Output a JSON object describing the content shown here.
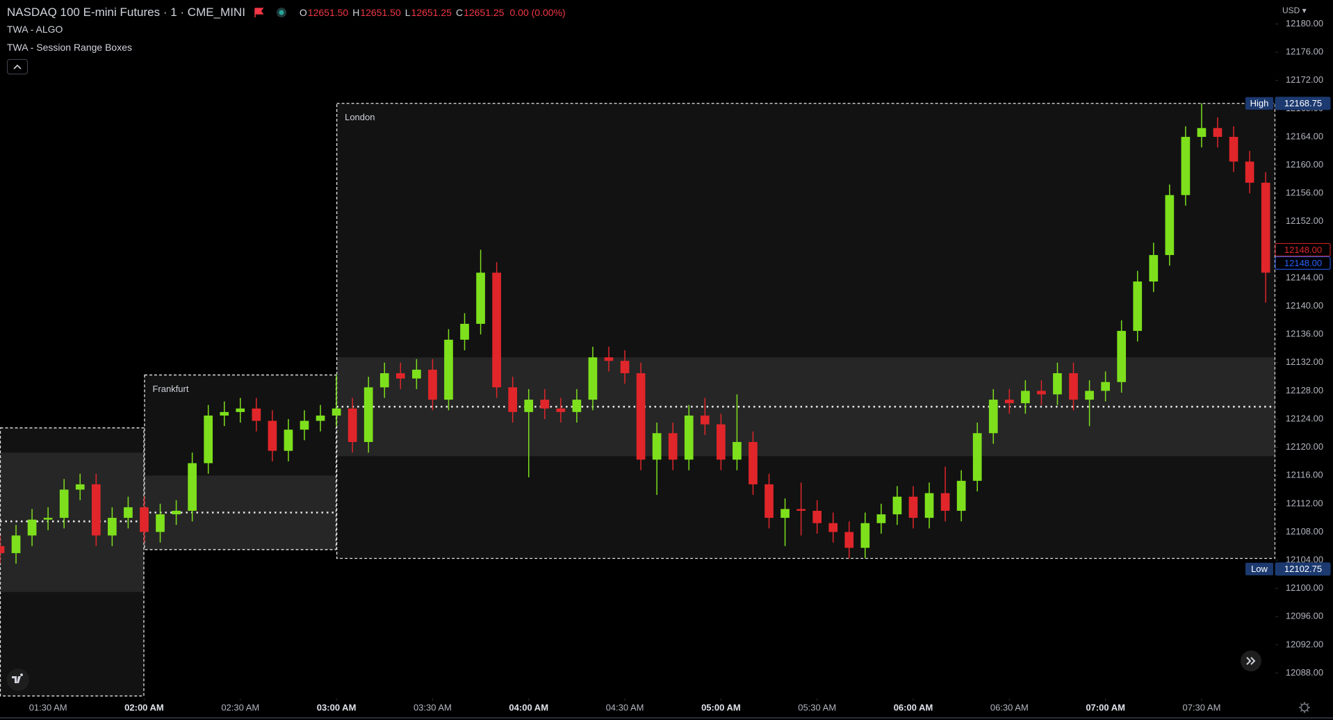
{
  "chart_data": {
    "type": "candlestick",
    "title": "NASDAQ 100 E-mini Futures · 1 · CME_MINI",
    "legend_ohlc": [
      {
        "label": "O",
        "value": "12651.50"
      },
      {
        "label": "H",
        "value": "12651.50"
      },
      {
        "label": "L",
        "value": "12651.25"
      },
      {
        "label": "C",
        "value": "12651.25"
      }
    ],
    "change": "0.00 (0.00%)",
    "indicators": [
      "TWA - ALGO",
      "TWA - Session Range Boxes"
    ],
    "currency": "USD",
    "up_color": "#7ee01d",
    "down_color": "#e0262a",
    "x": [
      "01:15",
      "01:20",
      "01:25",
      "01:30",
      "01:35",
      "01:40",
      "01:45",
      "01:50",
      "01:55",
      "02:00",
      "02:05",
      "02:10",
      "02:15",
      "02:20",
      "02:25",
      "02:30",
      "02:35",
      "02:40",
      "02:45",
      "02:50",
      "02:55",
      "03:00",
      "03:05",
      "03:10",
      "03:15",
      "03:20",
      "03:25",
      "03:30",
      "03:35",
      "03:40",
      "03:45",
      "03:50",
      "03:55",
      "04:00",
      "04:05",
      "04:10",
      "04:15",
      "04:20",
      "04:25",
      "04:30",
      "04:35",
      "04:40",
      "04:45",
      "04:50",
      "04:55",
      "05:00",
      "05:05",
      "05:10",
      "05:15",
      "05:20",
      "05:25",
      "05:30",
      "05:35",
      "05:40",
      "05:45",
      "05:50",
      "05:55",
      "06:00",
      "06:05",
      "06:10",
      "06:15",
      "06:20",
      "06:25",
      "06:30",
      "06:35",
      "06:40",
      "06:45",
      "06:50",
      "06:55",
      "07:00",
      "07:05",
      "07:10",
      "07:15",
      "07:20",
      "07:25",
      "07:30",
      "07:35",
      "07:40",
      "07:45",
      "07:50"
    ],
    "open": [
      12106.0,
      12105.0,
      12107.5,
      12109.75,
      12110.0,
      12114.0,
      12114.75,
      12107.5,
      12110.0,
      12111.5,
      12108.0,
      12110.5,
      12111.0,
      12117.75,
      12124.5,
      12125.0,
      12125.5,
      12123.75,
      12119.5,
      12122.5,
      12123.75,
      12124.5,
      12125.5,
      12120.75,
      12128.5,
      12130.5,
      12129.75,
      12131.0,
      12126.75,
      12135.25,
      12137.5,
      12144.75,
      12128.5,
      12125.0,
      12126.75,
      12125.5,
      12125.0,
      12126.75,
      12132.75,
      12132.25,
      12130.5,
      12118.25,
      12122.0,
      12118.25,
      12124.5,
      12123.25,
      12118.25,
      12120.75,
      12114.75,
      12110.0,
      12111.25,
      12111.0,
      12109.25,
      12108.0,
      12105.75,
      12109.25,
      12110.5,
      12113.0,
      12110.0,
      12113.5,
      12111.0,
      12115.25,
      12122.0,
      12126.75,
      12126.25,
      12128.0,
      12127.5,
      12130.5,
      12126.75,
      12128.0,
      12129.25,
      12136.5,
      12143.5,
      12147.25,
      12155.75,
      12164.0,
      12165.25,
      12164.0,
      12160.5,
      12157.5
    ],
    "high": [
      12107.5,
      12109.0,
      12111.25,
      12111.5,
      12115.5,
      12116.25,
      12116.25,
      12111.5,
      12113.0,
      12113.0,
      12112.0,
      12112.5,
      12119.25,
      12126.0,
      12126.5,
      12127.0,
      12127.0,
      12125.25,
      12124.0,
      12125.25,
      12126.0,
      12130.25,
      12127.0,
      12130.0,
      12132.0,
      12132.0,
      12132.5,
      12132.5,
      12136.75,
      12139.0,
      12148.0,
      12146.25,
      12130.0,
      12128.25,
      12128.25,
      12127.0,
      12128.25,
      12134.25,
      12134.25,
      12133.75,
      12132.0,
      12123.5,
      12123.5,
      12126.0,
      12127.0,
      12124.75,
      12127.5,
      12122.25,
      12116.25,
      12112.75,
      12115.0,
      12112.5,
      12110.75,
      12109.5,
      12110.75,
      12112.0,
      12114.5,
      12114.5,
      12115.0,
      12117.25,
      12116.75,
      12123.5,
      12128.25,
      12128.25,
      12129.5,
      12129.5,
      12132.0,
      12132.0,
      12129.5,
      12130.75,
      12138.0,
      12145.0,
      12149.0,
      12157.25,
      12165.5,
      12168.75,
      12166.75,
      12165.5,
      12162.0,
      12159.0
    ],
    "low": [
      12103.5,
      12103.5,
      12106.0,
      12108.25,
      12108.5,
      12112.5,
      12106.0,
      12106.0,
      12108.5,
      12106.5,
      12106.5,
      12109.0,
      12109.5,
      12116.25,
      12123.0,
      12123.5,
      12122.25,
      12118.0,
      12118.0,
      12121.0,
      12122.25,
      12123.0,
      12119.25,
      12119.25,
      12127.0,
      12128.25,
      12128.25,
      12125.25,
      12125.25,
      12133.75,
      12136.0,
      12127.0,
      12123.5,
      12115.75,
      12124.0,
      12123.5,
      12123.5,
      12125.25,
      12130.75,
      12129.0,
      12116.75,
      12113.25,
      12116.75,
      12116.75,
      12121.75,
      12116.75,
      12116.75,
      12113.25,
      12108.5,
      12106.0,
      12107.5,
      12107.75,
      12106.5,
      12104.25,
      12104.25,
      12107.75,
      12109.0,
      12108.5,
      12108.5,
      12109.5,
      12109.5,
      12113.75,
      12120.5,
      12124.75,
      12124.75,
      12126.0,
      12126.0,
      12125.25,
      12123.0,
      12126.5,
      12127.75,
      12135.0,
      12142.0,
      12145.75,
      12154.25,
      12162.5,
      12162.5,
      12159.0,
      12156.0,
      12140.5
    ],
    "close": [
      12105.0,
      12107.5,
      12109.75,
      12110.0,
      12114.0,
      12114.75,
      12107.5,
      12110.0,
      12111.5,
      12108.0,
      12110.5,
      12111.0,
      12117.75,
      12124.5,
      12125.0,
      12125.5,
      12123.75,
      12119.5,
      12122.5,
      12123.75,
      12124.5,
      12125.5,
      12120.75,
      12128.5,
      12130.5,
      12129.75,
      12131.0,
      12126.75,
      12135.25,
      12137.5,
      12144.75,
      12128.5,
      12125.0,
      12126.75,
      12125.5,
      12125.0,
      12126.75,
      12132.75,
      12132.25,
      12130.5,
      12118.25,
      12122.0,
      12118.25,
      12124.5,
      12123.25,
      12118.25,
      12120.75,
      12114.75,
      12110.0,
      12111.25,
      12111.0,
      12109.25,
      12108.0,
      12105.75,
      12109.25,
      12110.5,
      12113.0,
      12110.0,
      12113.5,
      12111.0,
      12115.25,
      12122.0,
      12126.75,
      12126.25,
      12128.0,
      12127.5,
      12130.5,
      12126.75,
      12128.0,
      12129.25,
      12136.5,
      12143.5,
      12147.25,
      12155.75,
      12164.0,
      12165.25,
      12164.0,
      12160.5,
      12157.5,
      12144.75
    ],
    "xlim": [
      "01:15",
      "07:53"
    ],
    "xticks": [
      {
        "value": "01:30",
        "label": "01:30 AM"
      },
      {
        "value": "02:00",
        "label": "02:00 AM"
      },
      {
        "value": "02:30",
        "label": "02:30 AM"
      },
      {
        "value": "03:00",
        "label": "03:00 AM"
      },
      {
        "value": "03:30",
        "label": "03:30 AM"
      },
      {
        "value": "04:00",
        "label": "04:00 AM"
      },
      {
        "value": "04:30",
        "label": "04:30 AM"
      },
      {
        "value": "05:00",
        "label": "05:00 AM"
      },
      {
        "value": "05:30",
        "label": "05:30 AM"
      },
      {
        "value": "06:00",
        "label": "06:00 AM"
      },
      {
        "value": "06:30",
        "label": "06:30 AM"
      },
      {
        "value": "07:00",
        "label": "07:00 AM"
      },
      {
        "value": "07:30",
        "label": "07:30 AM"
      }
    ],
    "ylim": [
      12084.4,
      12183.4
    ],
    "yticks": [
      {
        "value": 12180,
        "label": "12180.00"
      },
      {
        "value": 12176,
        "label": "12176.00"
      },
      {
        "value": 12172,
        "label": "12172.00"
      },
      {
        "value": 12168,
        "label": "12168.00"
      },
      {
        "value": 12164,
        "label": "12164.00"
      },
      {
        "value": 12160,
        "label": "12160.00"
      },
      {
        "value": 12156,
        "label": "12156.00"
      },
      {
        "value": 12152,
        "label": "12152.00"
      },
      {
        "value": 12148,
        "label": "12148.00"
      },
      {
        "value": 12144,
        "label": "12144.00"
      },
      {
        "value": 12140,
        "label": "12140.00"
      },
      {
        "value": 12136,
        "label": "12136.00"
      },
      {
        "value": 12132,
        "label": "12132.00"
      },
      {
        "value": 12128,
        "label": "12128.00"
      },
      {
        "value": 12124,
        "label": "12124.00"
      },
      {
        "value": 12120,
        "label": "12120.00"
      },
      {
        "value": 12116,
        "label": "12116.00"
      },
      {
        "value": 12112,
        "label": "12112.00"
      },
      {
        "value": 12108,
        "label": "12108.00"
      },
      {
        "value": 12104,
        "label": "12104.00"
      },
      {
        "value": 12100,
        "label": "12100.00"
      },
      {
        "value": 12096,
        "label": "12096.00"
      },
      {
        "value": 12092,
        "label": "12092.00"
      },
      {
        "value": 12088,
        "label": "12088.00"
      }
    ],
    "sessions": [
      {
        "start": "01:15",
        "end": "02:00",
        "high": 12122.75,
        "low": 12084.75,
        "band_high": 12119.25,
        "band_low": 12099.5,
        "mid": 12109.5
      },
      {
        "name": "Frankfurt",
        "start": "02:00",
        "end": "03:00",
        "high": 12130.25,
        "low": 12105.5,
        "band_high": 12116.0,
        "band_low": 12105.5,
        "mid": 12110.75
      },
      {
        "name": "London",
        "start": "03:00",
        "end": "07:53",
        "high": 12168.75,
        "low": 12104.25,
        "band_high": 12132.75,
        "band_low": 12118.75,
        "mid": 12125.75
      }
    ],
    "price_tags": [
      {
        "name": "High",
        "value": 12168.75,
        "color": "#1c3a70",
        "filled": true
      },
      {
        "value": 12148,
        "value_label": "12148.00",
        "color": "#e0262a",
        "filled": false
      },
      {
        "value": 12148,
        "value_label": "12148.00",
        "color": "#2962ff",
        "filled": false
      },
      {
        "name": "Low",
        "value": 12102.75,
        "color": "#1c3a70",
        "filled": true
      }
    ]
  }
}
